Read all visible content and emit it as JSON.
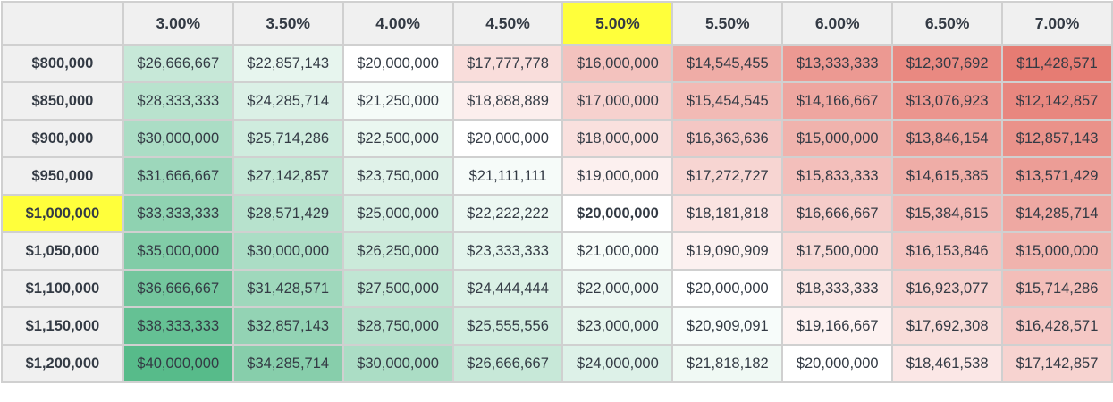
{
  "colors": {
    "min": "#e67c73",
    "mid": "#ffffff",
    "max": "#57bb8a",
    "highlight": "#ffff3b"
  },
  "color_scale": {
    "min": 11428571,
    "mid": 20000000,
    "max": 40000000
  },
  "corner": "",
  "columns": [
    "3.00%",
    "3.50%",
    "4.00%",
    "4.50%",
    "5.00%",
    "5.50%",
    "6.00%",
    "6.50%",
    "7.00%"
  ],
  "highlight_column": 4,
  "highlight_row": 4,
  "rows": [
    {
      "label": "$800,000",
      "cells": [
        "$26,666,667",
        "$22,857,143",
        "$20,000,000",
        "$17,777,778",
        "$16,000,000",
        "$14,545,455",
        "$13,333,333",
        "$12,307,692",
        "$11,428,571"
      ]
    },
    {
      "label": "$850,000",
      "cells": [
        "$28,333,333",
        "$24,285,714",
        "$21,250,000",
        "$18,888,889",
        "$17,000,000",
        "$15,454,545",
        "$14,166,667",
        "$13,076,923",
        "$12,142,857"
      ]
    },
    {
      "label": "$900,000",
      "cells": [
        "$30,000,000",
        "$25,714,286",
        "$22,500,000",
        "$20,000,000",
        "$18,000,000",
        "$16,363,636",
        "$15,000,000",
        "$13,846,154",
        "$12,857,143"
      ]
    },
    {
      "label": "$950,000",
      "cells": [
        "$31,666,667",
        "$27,142,857",
        "$23,750,000",
        "$21,111,111",
        "$19,000,000",
        "$17,272,727",
        "$15,833,333",
        "$14,615,385",
        "$13,571,429"
      ]
    },
    {
      "label": "$1,000,000",
      "cells": [
        "$33,333,333",
        "$28,571,429",
        "$25,000,000",
        "$22,222,222",
        "$20,000,000",
        "$18,181,818",
        "$16,666,667",
        "$15,384,615",
        "$14,285,714"
      ]
    },
    {
      "label": "$1,050,000",
      "cells": [
        "$35,000,000",
        "$30,000,000",
        "$26,250,000",
        "$23,333,333",
        "$21,000,000",
        "$19,090,909",
        "$17,500,000",
        "$16,153,846",
        "$15,000,000"
      ]
    },
    {
      "label": "$1,100,000",
      "cells": [
        "$36,666,667",
        "$31,428,571",
        "$27,500,000",
        "$24,444,444",
        "$22,000,000",
        "$20,000,000",
        "$18,333,333",
        "$16,923,077",
        "$15,714,286"
      ]
    },
    {
      "label": "$1,150,000",
      "cells": [
        "$38,333,333",
        "$32,857,143",
        "$28,750,000",
        "$25,555,556",
        "$23,000,000",
        "$20,909,091",
        "$19,166,667",
        "$17,692,308",
        "$16,428,571"
      ]
    },
    {
      "label": "$1,200,000",
      "cells": [
        "$40,000,000",
        "$34,285,714",
        "$30,000,000",
        "$26,666,667",
        "$24,000,000",
        "$21,818,182",
        "$20,000,000",
        "$18,461,538",
        "$17,142,857"
      ]
    }
  ]
}
